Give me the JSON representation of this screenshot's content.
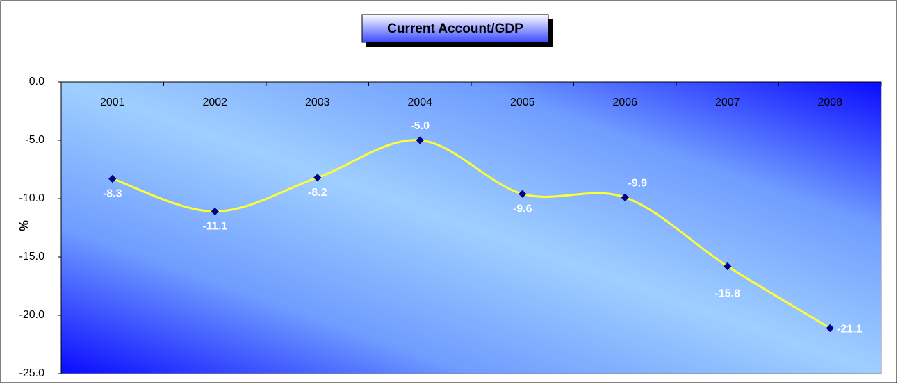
{
  "chart_data": {
    "type": "line",
    "title": "Current Account/GDP",
    "y_label": "%",
    "categories": [
      "2001",
      "2002",
      "2003",
      "2004",
      "2005",
      "2006",
      "2007",
      "2008"
    ],
    "series": [
      {
        "name": "Current Account/GDP",
        "color": "#ffff33",
        "values": [
          -8.3,
          -11.1,
          -8.2,
          -5.0,
          -9.6,
          -9.9,
          -15.8,
          -21.1
        ],
        "value_labels": [
          "-8.3",
          "-11.1",
          "-8.2",
          "-5.0",
          "-9.6",
          "-9.9",
          "-15.8",
          "-21.1"
        ]
      }
    ],
    "ylim": [
      -25,
      0
    ],
    "yticks": [
      {
        "value": 0,
        "label": "0.0"
      },
      {
        "value": -5,
        "label": "-5.0"
      },
      {
        "value": -10,
        "label": "-10.0"
      },
      {
        "value": -15,
        "label": "-15.0"
      },
      {
        "value": -20,
        "label": "-20.0"
      },
      {
        "value": -25,
        "label": "-25.0"
      }
    ],
    "marker_color": "#000080"
  }
}
